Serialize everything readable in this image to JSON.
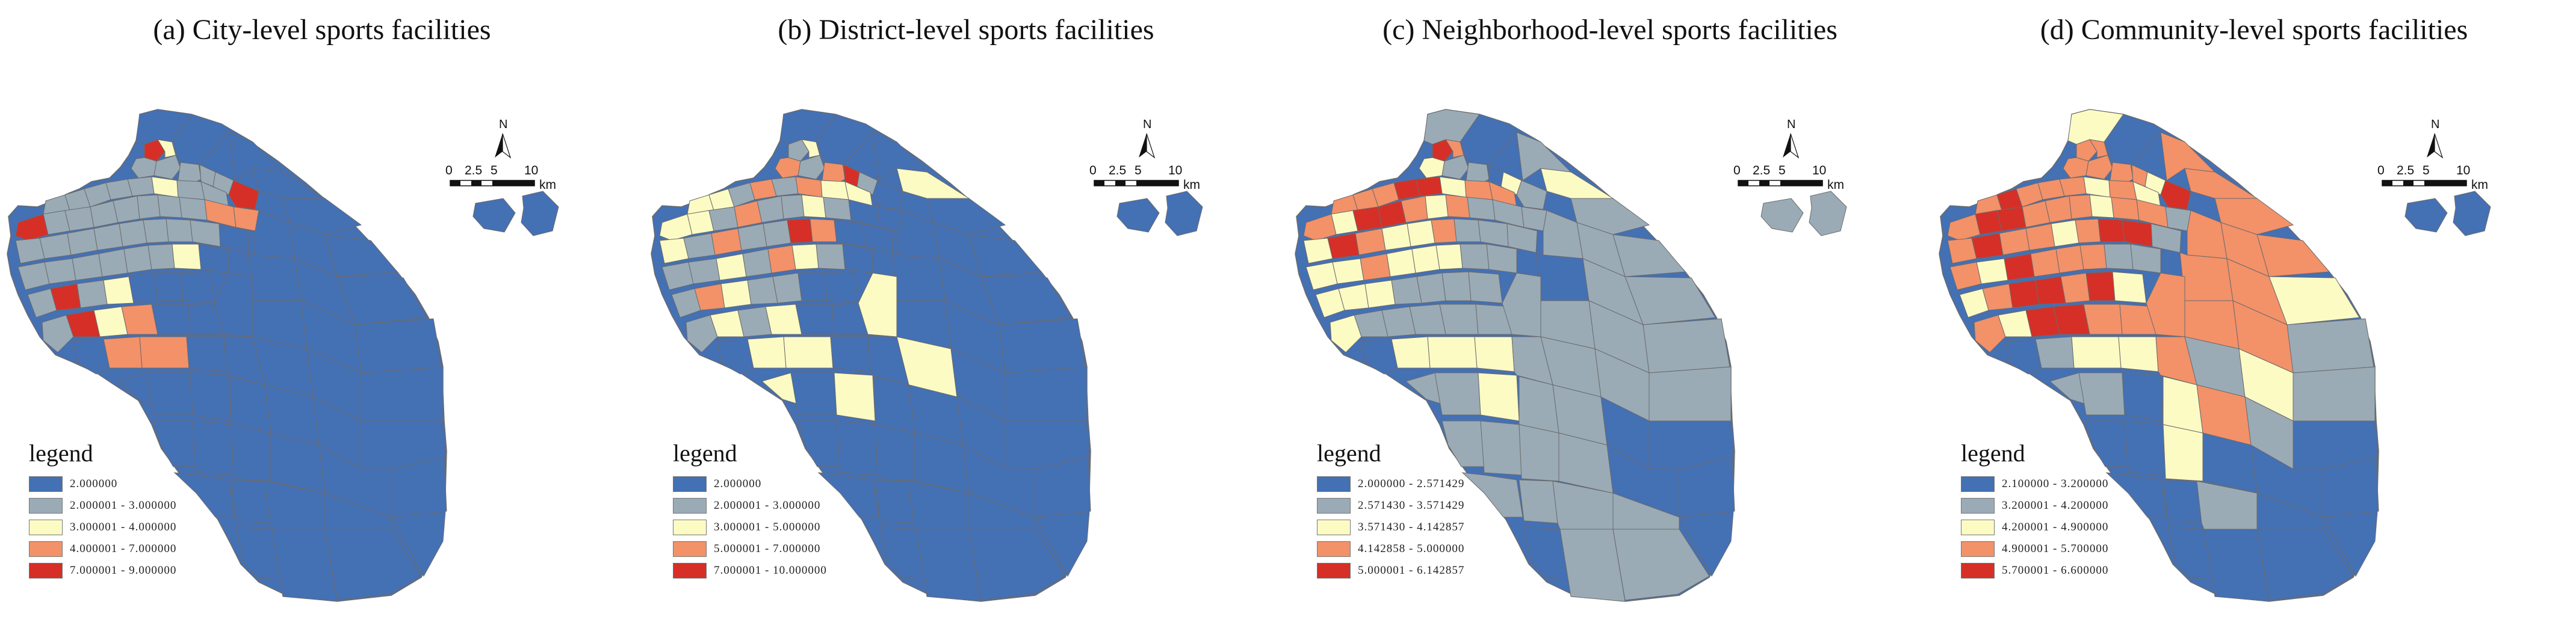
{
  "colors": {
    "class1": "#4470b4",
    "class2": "#9aabb6",
    "class3": "#fcfbc4",
    "class4": "#f39169",
    "class5": "#d62f27",
    "outline": "#6b6b6b"
  },
  "scale_bar": {
    "ticks": [
      "0",
      "2.5",
      "5",
      "10"
    ],
    "unit": "km",
    "north_label": "N"
  },
  "legend_title": "legend",
  "panels": [
    {
      "title": "(a)  City-level sports facilities",
      "legend": [
        "2.000000",
        "2.000001 - 3.000000",
        "3.000001 - 4.000000",
        "4.000001 - 7.000000",
        "7.000001 - 9.000000"
      ]
    },
    {
      "title": "(b)  District-level sports facilities",
      "legend": [
        "2.000000",
        "2.000001 - 3.000000",
        "3.000001 - 5.000000",
        "5.000001 - 7.000000",
        "7.000001 - 10.000000"
      ]
    },
    {
      "title": "(c)  Neighborhood-level sports facilities",
      "legend": [
        "2.000000 - 2.571429",
        "2.571430 - 3.571429",
        "3.571430 - 4.142857",
        "4.142858 - 5.000000",
        "5.000001 - 6.142857"
      ]
    },
    {
      "title": "(d)  Community-level sports facilities",
      "legend": [
        "2.100000 - 3.200000",
        "3.200001 - 4.200000",
        "4.200001 - 4.900000",
        "4.900001 - 5.700000",
        "5.700001 - 6.600000"
      ]
    }
  ]
}
